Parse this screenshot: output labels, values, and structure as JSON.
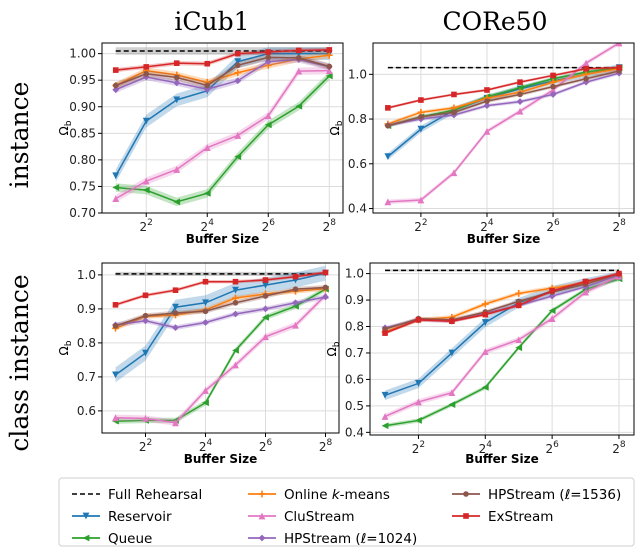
{
  "column_titles": [
    "iCub1",
    "CORe50"
  ],
  "row_titles": [
    "instance",
    "class instance"
  ],
  "legend": [
    {
      "name": "Full Rehearsal",
      "style": "dashed",
      "color": "#000000"
    },
    {
      "name": "Reservoir",
      "marker": "tri_down",
      "color": "#1f77b4"
    },
    {
      "name": "Queue",
      "marker": "tri_left",
      "color": "#2ca02c"
    },
    {
      "name": "Online k-means",
      "name_prefix": "Online ",
      "name_italic": "k",
      "name_suffix": "-means",
      "marker": "plus",
      "color": "#ff7f0e"
    },
    {
      "name": "CluStream",
      "marker": "tri_up",
      "color": "#e377c2"
    },
    {
      "name": "HPStream (ℓ=1024)",
      "marker": "diamond",
      "color": "#9467bd"
    },
    {
      "name": "HPStream (ℓ=1536)",
      "marker": "circle",
      "color": "#8c564b"
    },
    {
      "name": "ExStream",
      "marker": "square",
      "color": "#d62728"
    }
  ],
  "chart_data": [
    {
      "type": "line",
      "title": "iCub1",
      "row": "instance",
      "xlabel": "Buffer Size",
      "ylabel": "Ω_b",
      "x": [
        1,
        2,
        3,
        4,
        5,
        6,
        7,
        8
      ],
      "xticks": [
        2,
        4,
        6,
        8
      ],
      "xtick_labels": [
        "2",
        "4",
        "6",
        "8"
      ],
      "x_tick_base": "2",
      "ylim": [
        0.7,
        1.02
      ],
      "yticks": [
        "0.70",
        "0.75",
        "0.80",
        "0.85",
        "0.90",
        "0.95",
        "1.00"
      ],
      "reference": {
        "name": "Full Rehearsal",
        "value": 1.005,
        "band": [
          0.998,
          1.012
        ]
      },
      "series": [
        {
          "name": "Reservoir",
          "values": [
            0.77,
            0.873,
            0.913,
            0.93,
            0.985,
            1.0,
            1.0,
            1.0
          ],
          "band": 0.012
        },
        {
          "name": "Queue",
          "values": [
            0.748,
            0.743,
            0.721,
            0.737,
            0.806,
            0.866,
            0.901,
            0.958
          ],
          "band": 0.008
        },
        {
          "name": "Online k-means",
          "values": [
            0.94,
            0.968,
            0.96,
            0.946,
            0.964,
            0.978,
            0.99,
            0.997
          ],
          "band": 0.006
        },
        {
          "name": "CluStream",
          "values": [
            0.727,
            0.76,
            0.782,
            0.823,
            0.846,
            0.883,
            0.967,
            0.968
          ],
          "band": 0.007
        },
        {
          "name": "HPStream (ℓ=1024)",
          "values": [
            0.932,
            0.956,
            0.945,
            0.933,
            0.949,
            0.985,
            0.989,
            0.975
          ],
          "band": 0.006
        },
        {
          "name": "HPStream (ℓ=1536)",
          "values": [
            0.94,
            0.962,
            0.955,
            0.94,
            0.978,
            0.993,
            0.992,
            0.976
          ],
          "band": 0.006
        },
        {
          "name": "ExStream",
          "values": [
            0.969,
            0.975,
            0.982,
            0.981,
            1.0,
            1.003,
            1.006,
            1.007
          ],
          "band": 0.004
        }
      ]
    },
    {
      "type": "line",
      "title": "CORe50",
      "row": "instance",
      "xlabel": "Buffer Size",
      "ylabel": "Ω_b",
      "x": [
        1,
        2,
        3,
        4,
        5,
        6,
        7,
        8
      ],
      "xticks": [
        2,
        4,
        6,
        8
      ],
      "xtick_labels": [
        "2",
        "4",
        "6",
        "8"
      ],
      "x_tick_base": "2",
      "ylim": [
        0.38,
        1.14
      ],
      "yticks": [
        "0.4",
        "0.6",
        "0.8",
        "1.0"
      ],
      "reference": {
        "name": "Full Rehearsal",
        "value": 1.03,
        "band": [
          1.027,
          1.033
        ]
      },
      "series": [
        {
          "name": "Reservoir",
          "values": [
            0.632,
            0.755,
            0.84,
            0.893,
            0.935,
            0.97,
            1.0,
            1.03
          ],
          "band": 0.015
        },
        {
          "name": "Queue",
          "values": [
            0.77,
            0.81,
            0.84,
            0.9,
            0.94,
            0.98,
            1.01,
            1.03
          ],
          "band": 0.008
        },
        {
          "name": "Online k-means",
          "values": [
            0.778,
            0.83,
            0.85,
            0.893,
            0.92,
            0.965,
            1.0,
            1.025
          ],
          "band": 0.008
        },
        {
          "name": "CluStream",
          "values": [
            0.43,
            0.438,
            0.56,
            0.745,
            0.835,
            0.93,
            1.05,
            1.14
          ],
          "band": 0.01
        },
        {
          "name": "HPStream (ℓ=1024)",
          "values": [
            0.772,
            0.8,
            0.818,
            0.86,
            0.878,
            0.91,
            0.965,
            1.005
          ],
          "band": 0.008
        },
        {
          "name": "HPStream (ℓ=1536)",
          "values": [
            0.77,
            0.81,
            0.83,
            0.88,
            0.91,
            0.945,
            0.98,
            1.015
          ],
          "band": 0.008
        },
        {
          "name": "ExStream",
          "values": [
            0.85,
            0.885,
            0.91,
            0.93,
            0.965,
            0.995,
            1.025,
            1.03
          ],
          "band": 0.006
        }
      ]
    },
    {
      "type": "line",
      "title": "iCub1",
      "row": "class instance",
      "xlabel": "Buffer Size",
      "ylabel": "Ω_b",
      "x": [
        1,
        2,
        3,
        4,
        5,
        6,
        7,
        8
      ],
      "xticks": [
        2,
        4,
        6,
        8
      ],
      "xtick_labels": [
        "2",
        "4",
        "6",
        "8"
      ],
      "x_tick_base": "2",
      "ylim": [
        0.535,
        1.035
      ],
      "yticks": [
        "0.6",
        "0.7",
        "0.8",
        "0.9",
        "1.0"
      ],
      "reference": {
        "name": "Full Rehearsal",
        "value": 1.003,
        "band": [
          0.997,
          1.009
        ]
      },
      "series": [
        {
          "name": "Reservoir",
          "values": [
            0.706,
            0.77,
            0.905,
            0.918,
            0.955,
            0.97,
            0.985,
            1.005
          ],
          "band": 0.022
        },
        {
          "name": "Queue",
          "values": [
            0.57,
            0.572,
            0.572,
            0.624,
            0.778,
            0.875,
            0.908,
            0.958
          ],
          "band": 0.008
        },
        {
          "name": "Online k-means",
          "values": [
            0.843,
            0.878,
            0.882,
            0.897,
            0.932,
            0.944,
            0.952,
            0.96
          ],
          "band": 0.007
        },
        {
          "name": "CluStream",
          "values": [
            0.58,
            0.578,
            0.565,
            0.66,
            0.735,
            0.818,
            0.852,
            0.94
          ],
          "band": 0.009
        },
        {
          "name": "HPStream (ℓ=1024)",
          "values": [
            0.853,
            0.865,
            0.845,
            0.86,
            0.885,
            0.9,
            0.918,
            0.935
          ],
          "band": 0.007
        },
        {
          "name": "HPStream (ℓ=1536)",
          "values": [
            0.85,
            0.88,
            0.888,
            0.893,
            0.918,
            0.938,
            0.958,
            0.963
          ],
          "band": 0.007
        },
        {
          "name": "ExStream",
          "values": [
            0.912,
            0.94,
            0.955,
            0.98,
            0.98,
            0.985,
            0.995,
            1.007
          ],
          "band": 0.005
        }
      ]
    },
    {
      "type": "line",
      "title": "CORe50",
      "row": "class instance",
      "xlabel": "Buffer Size",
      "ylabel": "Ω_b",
      "x": [
        1,
        2,
        3,
        4,
        5,
        6,
        7,
        8
      ],
      "xticks": [
        2,
        4,
        6,
        8
      ],
      "xtick_labels": [
        "2",
        "4",
        "6",
        "8"
      ],
      "x_tick_base": "2",
      "ylim": [
        0.39,
        1.04
      ],
      "yticks": [
        "0.4",
        "0.5",
        "0.6",
        "0.7",
        "0.8",
        "0.9",
        "1.0"
      ],
      "reference": {
        "name": "Full Rehearsal",
        "value": 1.012,
        "band": [
          1.008,
          1.016
        ]
      },
      "series": [
        {
          "name": "Reservoir",
          "values": [
            0.54,
            0.585,
            0.7,
            0.815,
            0.89,
            0.935,
            0.965,
            0.99
          ],
          "band": 0.018
        },
        {
          "name": "Queue",
          "values": [
            0.425,
            0.445,
            0.505,
            0.57,
            0.72,
            0.86,
            0.94,
            0.98
          ],
          "band": 0.008
        },
        {
          "name": "Online k-means",
          "values": [
            0.78,
            0.825,
            0.835,
            0.885,
            0.925,
            0.945,
            0.965,
            0.99
          ],
          "band": 0.008
        },
        {
          "name": "CluStream",
          "values": [
            0.46,
            0.515,
            0.55,
            0.705,
            0.75,
            0.83,
            0.93,
            0.99
          ],
          "band": 0.01
        },
        {
          "name": "HPStream (ℓ=1024)",
          "values": [
            0.795,
            0.825,
            0.82,
            0.85,
            0.88,
            0.915,
            0.95,
            0.995
          ],
          "band": 0.007
        },
        {
          "name": "HPStream (ℓ=1536)",
          "values": [
            0.79,
            0.83,
            0.825,
            0.855,
            0.895,
            0.93,
            0.96,
            1.0
          ],
          "band": 0.007
        },
        {
          "name": "ExStream",
          "values": [
            0.775,
            0.825,
            0.82,
            0.845,
            0.88,
            0.935,
            0.97,
            1.0
          ],
          "band": 0.006
        }
      ]
    }
  ]
}
